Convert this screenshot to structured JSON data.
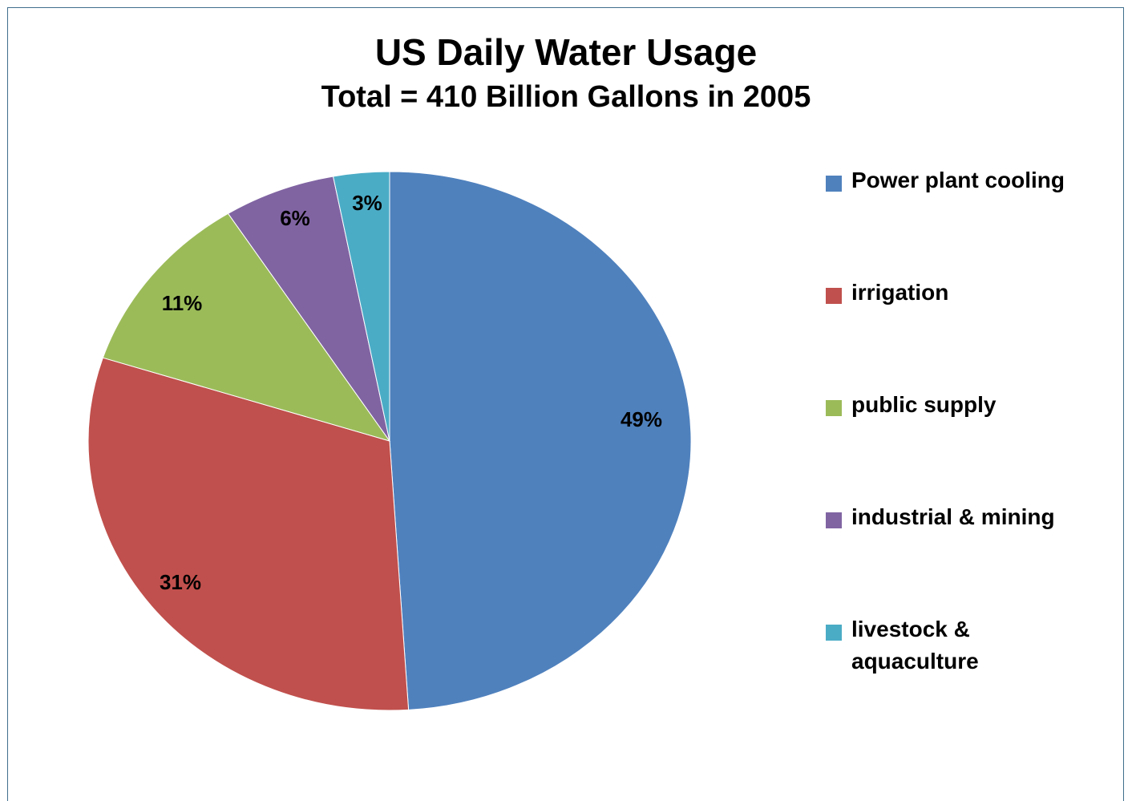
{
  "chart_data": {
    "type": "pie",
    "title": "US Daily Water Usage",
    "subtitle": "Total = 410 Billion Gallons in 2005",
    "categories": [
      "Power plant cooling",
      "irrigation",
      "public supply",
      "industrial & mining",
      "livestock & aquaculture"
    ],
    "values": [
      49,
      31,
      11,
      6,
      3
    ],
    "data_labels": [
      "49%",
      "31%",
      "11%",
      "6%",
      "3%"
    ],
    "colors": [
      "#4f81bd",
      "#c0504d",
      "#9bbb59",
      "#8064a2",
      "#4bacc6"
    ],
    "legend_position": "right",
    "legend_lines": [
      [
        "Power plant cooling"
      ],
      [
        "irrigation"
      ],
      [
        "public supply"
      ],
      [
        "industrial & mining"
      ],
      [
        "livestock &",
        "aquaculture"
      ]
    ]
  }
}
